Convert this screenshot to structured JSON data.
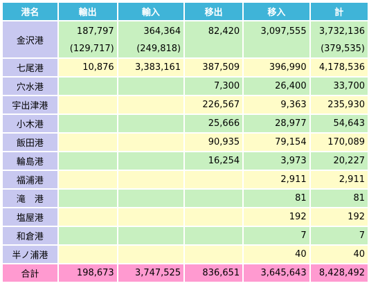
{
  "headers": [
    "港名",
    "輸出",
    "輸入",
    "移出",
    "移入",
    "計"
  ],
  "kanazawa": {
    "name": "金沢港",
    "export": "187,797",
    "export_sub": "(129,717)",
    "import": "364,364",
    "import_sub": "(249,818)",
    "ship_out": "82,420",
    "ship_in": "3,097,555",
    "total": "3,732,136",
    "total_sub": "(379,535)"
  },
  "rows": [
    {
      "name": "七尾港",
      "export": "10,876",
      "import": "3,383,161",
      "ship_out": "387,509",
      "ship_in": "396,990",
      "total": "4,178,536"
    },
    {
      "name": "穴水港",
      "export": "",
      "import": "",
      "ship_out": "7,300",
      "ship_in": "26,400",
      "total": "33,700"
    },
    {
      "name": "宇出津港",
      "export": "",
      "import": "",
      "ship_out": "226,567",
      "ship_in": "9,363",
      "total": "235,930"
    },
    {
      "name": "小木港",
      "export": "",
      "import": "",
      "ship_out": "25,666",
      "ship_in": "28,977",
      "total": "54,643"
    },
    {
      "name": "飯田港",
      "export": "",
      "import": "",
      "ship_out": "90,935",
      "ship_in": "79,154",
      "total": "170,089"
    },
    {
      "name": "輪島港",
      "export": "",
      "import": "",
      "ship_out": "16,254",
      "ship_in": "3,973",
      "total": "20,227"
    },
    {
      "name": "福浦港",
      "export": "",
      "import": "",
      "ship_out": "",
      "ship_in": "2,911",
      "total": "2,911"
    },
    {
      "name": "滝　港",
      "export": "",
      "import": "",
      "ship_out": "",
      "ship_in": "81",
      "total": "81"
    },
    {
      "name": "塩屋港",
      "export": "",
      "import": "",
      "ship_out": "",
      "ship_in": "192",
      "total": "192"
    },
    {
      "name": "和倉港",
      "export": "",
      "import": "",
      "ship_out": "",
      "ship_in": "7",
      "total": "7"
    },
    {
      "name": "半ノ浦港",
      "export": "",
      "import": "",
      "ship_out": "",
      "ship_in": "40",
      "total": "40"
    }
  ],
  "total_row": {
    "name": "合計",
    "export": "198,673",
    "import": "3,747,525",
    "ship_out": "836,651",
    "ship_in": "3,645,643",
    "total": "8,428,492"
  },
  "colors": {
    "header": "#3fb4d8",
    "name_col": "#c8c8f0",
    "green": "#c8f0c0",
    "yellow": "#fffcc8",
    "total": "#ff9ad0"
  }
}
